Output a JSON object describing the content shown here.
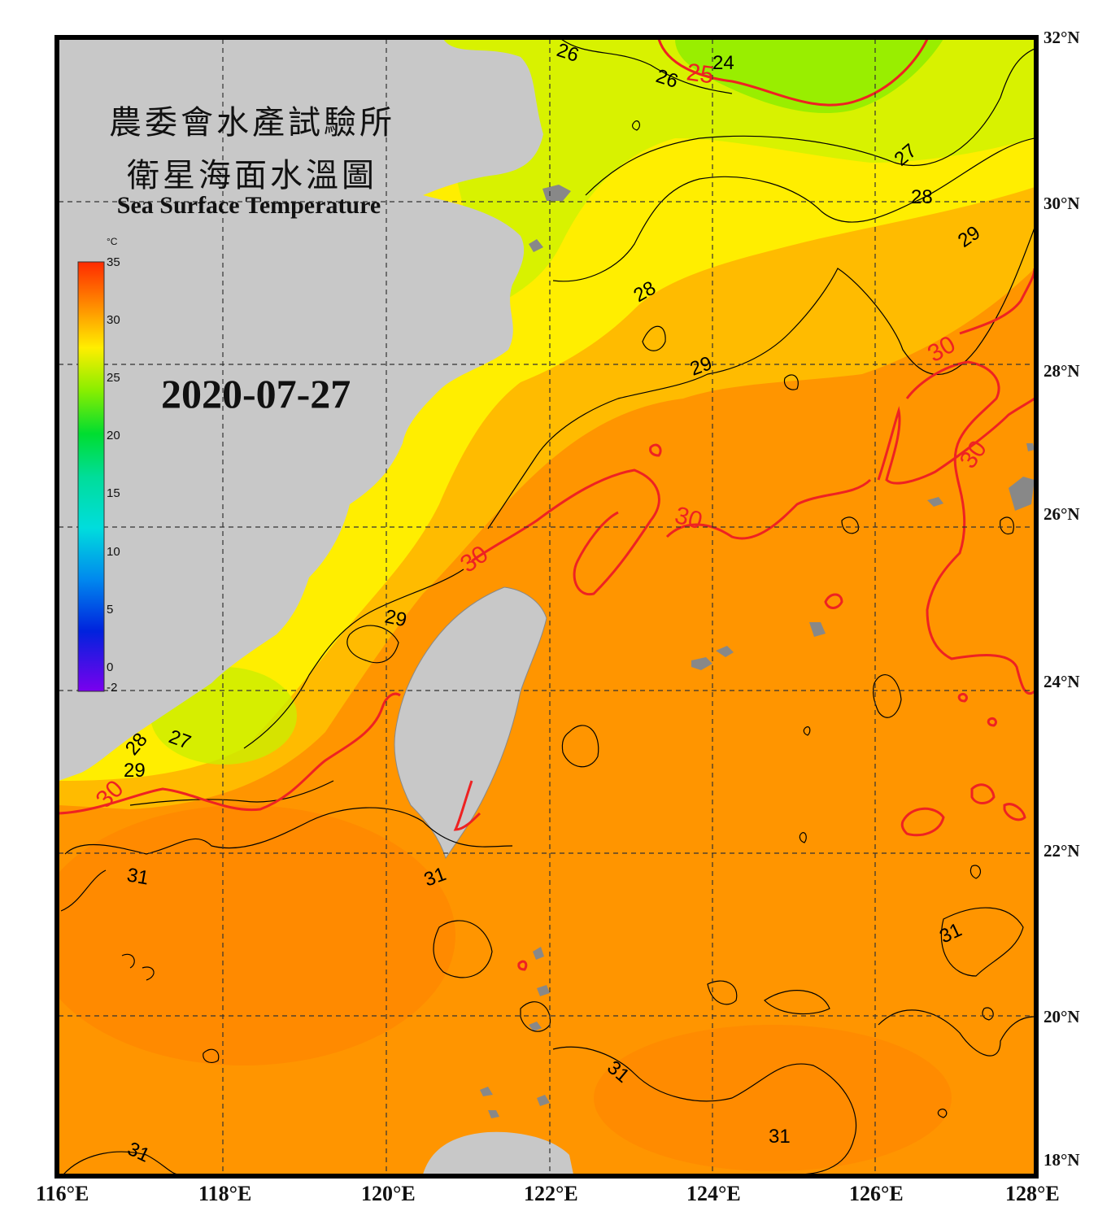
{
  "title": {
    "line1": "農委會水產試驗所",
    "line2": "衛星海面水溫圖",
    "english": "Sea Surface Temperature"
  },
  "date": "2020-07-27",
  "colorbar": {
    "unit": "°C",
    "min": -2,
    "max": 35,
    "ticks": [
      "35",
      "30",
      "25",
      "20",
      "15",
      "10",
      "5",
      "0",
      "-2"
    ]
  },
  "axes": {
    "lat_labels": [
      "32°N",
      "30°N",
      "28°N",
      "26°N",
      "24°N",
      "22°N",
      "20°N",
      "18°N"
    ],
    "lon_labels": [
      "116°E",
      "118°E",
      "120°E",
      "122°E",
      "124°E",
      "126°E",
      "128°E"
    ]
  },
  "contour_labels": [
    "26",
    "26",
    "25",
    "24",
    "27",
    "28",
    "29",
    "28",
    "29",
    "30",
    "30",
    "30",
    "30",
    "29",
    "27",
    "28",
    "29",
    "30",
    "31",
    "31",
    "31",
    "31",
    "31",
    "31"
  ],
  "colors": {
    "land": "#c8c8c8",
    "sea_warm": "#ff9900",
    "sea_mid": "#ffee00",
    "sea_cool": "#99ee00",
    "contour_30": "#ee2222",
    "contour": "#000000"
  }
}
